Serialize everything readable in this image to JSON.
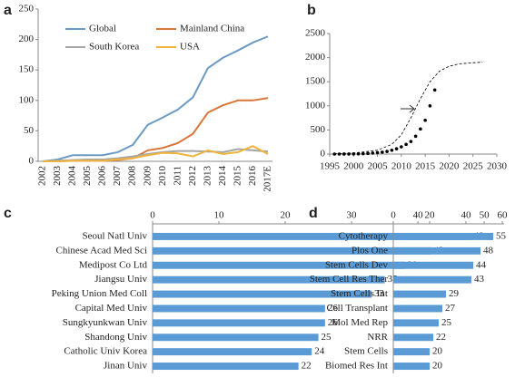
{
  "chart_data": [
    {
      "type": "line",
      "label": "a",
      "categories": [
        "2002",
        "2003",
        "2004",
        "2005",
        "2006",
        "2007",
        "2008",
        "2009",
        "2010",
        "2011",
        "2012",
        "2013",
        "2014",
        "2015",
        "2016",
        "2017E"
      ],
      "ylim": [
        0,
        250
      ],
      "yticks": [
        0,
        50,
        100,
        150,
        200,
        250
      ],
      "legend": "top-left",
      "series": [
        {
          "name": "Global",
          "color": "#6b9bc3",
          "values": [
            0,
            3,
            10,
            10,
            10,
            15,
            27,
            60,
            72,
            85,
            105,
            153,
            170,
            182,
            195,
            205
          ]
        },
        {
          "name": "Mainland China",
          "color": "#d8773a",
          "values": [
            0,
            0,
            1,
            1,
            1,
            2,
            5,
            18,
            22,
            30,
            45,
            80,
            92,
            100,
            100,
            104
          ]
        },
        {
          "name": "South Korea",
          "color": "#a5a5a5",
          "values": [
            0,
            1,
            2,
            3,
            3,
            5,
            8,
            12,
            15,
            17,
            17,
            16,
            15,
            20,
            18,
            16
          ]
        },
        {
          "name": "USA",
          "color": "#f0b43c",
          "values": [
            0,
            0,
            1,
            1,
            1,
            3,
            5,
            10,
            14,
            13,
            8,
            18,
            12,
            15,
            25,
            12
          ]
        }
      ]
    },
    {
      "type": "scatter",
      "label": "b",
      "xlim": [
        1995,
        2030
      ],
      "xticks": [
        1995,
        2000,
        2005,
        2010,
        2015,
        2020,
        2025,
        2030
      ],
      "ylim": [
        0,
        2500
      ],
      "yticks": [
        0,
        500,
        1000,
        1500,
        2000,
        2500
      ],
      "series": [
        {
          "mode": "markers",
          "color": "#000000",
          "x": [
            1996,
            1997,
            1998,
            1999,
            2000,
            2001,
            2002,
            2003,
            2004,
            2005,
            2006,
            2007,
            2008,
            2009,
            2010,
            2011,
            2012,
            2013,
            2014,
            2015,
            2016,
            2017
          ],
          "values": [
            0,
            0,
            1,
            2,
            3,
            5,
            8,
            12,
            20,
            30,
            40,
            55,
            80,
            110,
            150,
            200,
            260,
            370,
            520,
            700,
            1000,
            1330
          ]
        },
        {
          "mode": "dashed-line",
          "color": "#000000",
          "x": [
            1996,
            2000,
            2005,
            2008,
            2010,
            2012,
            2014,
            2016,
            2018,
            2020,
            2022,
            2025,
            2027
          ],
          "values": [
            5,
            20,
            80,
            200,
            400,
            750,
            1150,
            1500,
            1720,
            1820,
            1870,
            1895,
            1905
          ]
        }
      ]
    },
    {
      "type": "hbar",
      "label": "c",
      "color": "#5b9bd5",
      "categories": [
        "Seoul Natl Univ",
        "Chinese Acad Med Sci",
        "Medipost Co Ltd",
        "Jiangsu Univ",
        "Peking Union Med Coll",
        "Capital Med Univ",
        "Sungkyunkwan Univ",
        "Shandong Univ",
        "Catholic Univ Korea",
        "Jinan Univ"
      ],
      "values": [
        48,
        42,
        38,
        35,
        33,
        26,
        26,
        25,
        24,
        22
      ],
      "xlim": [
        0,
        53
      ],
      "xticks": [
        0,
        10,
        20,
        30,
        40,
        50
      ]
    },
    {
      "type": "hbar",
      "label": "d",
      "color": "#5b9bd5",
      "categories": [
        "Cytotherapy",
        "Plos One",
        "Stem Cells Dev",
        "Stem Cell Res Ther",
        "Stem Cells Int",
        "Cell Transplant",
        "Mol Med Rep",
        "NRR",
        "Stem Cells",
        "Biomed Res Int"
      ],
      "values": [
        55,
        48,
        44,
        43,
        29,
        27,
        25,
        22,
        20,
        20
      ],
      "xlim": [
        0,
        60
      ],
      "xticks": [
        0,
        20,
        40,
        60
      ]
    }
  ]
}
